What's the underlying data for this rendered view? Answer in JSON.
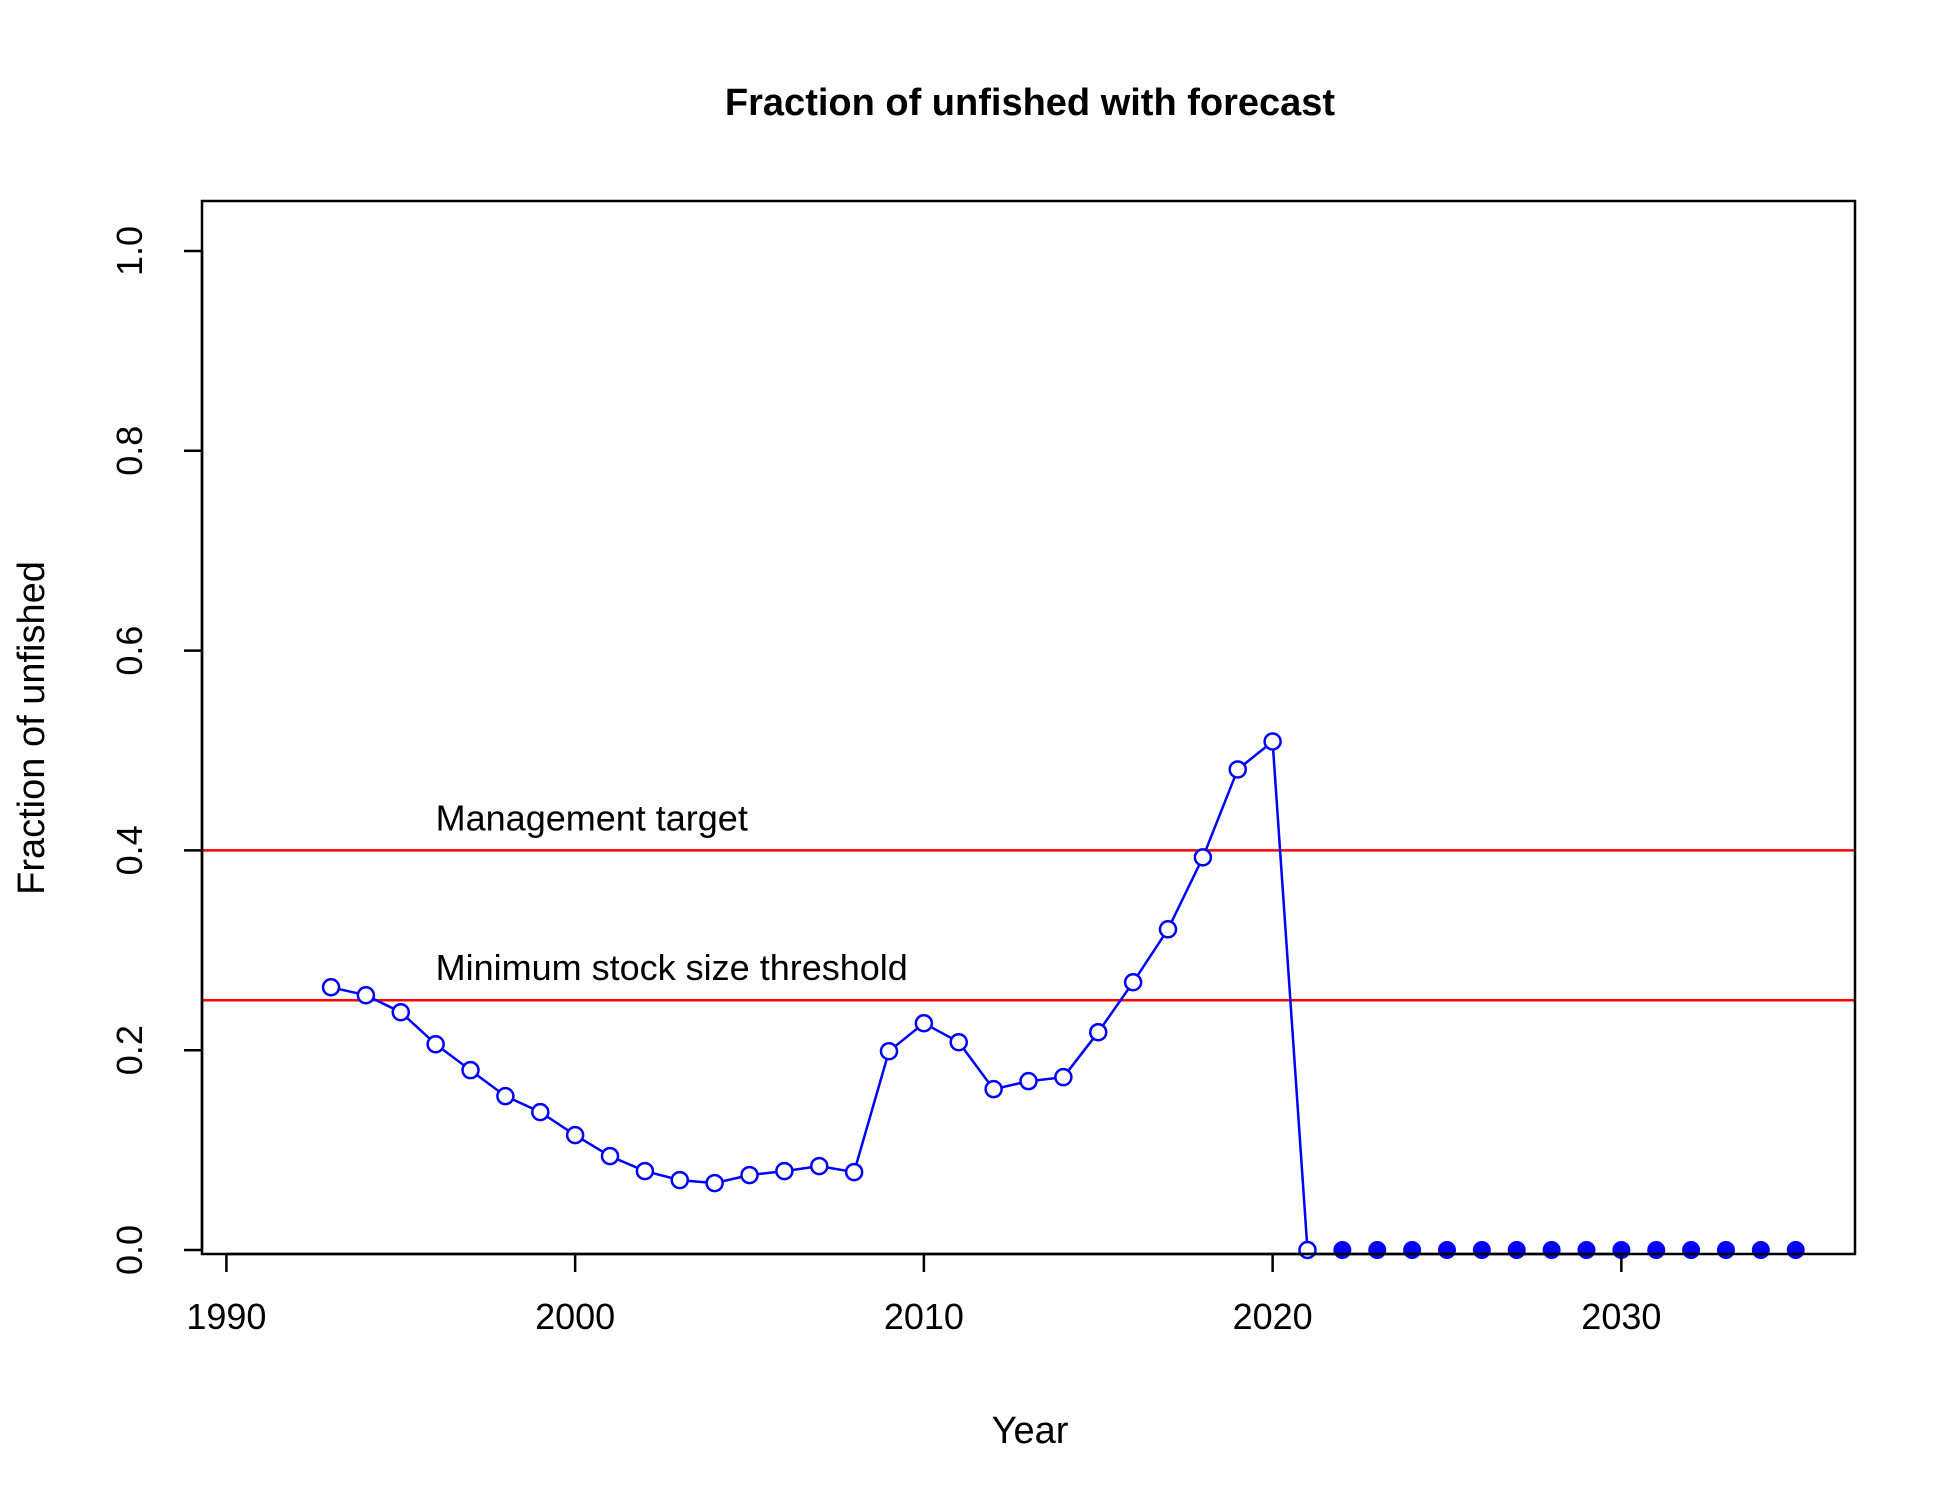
{
  "chart_data": {
    "type": "line",
    "title": "Fraction of unfished with forecast",
    "xlabel": "Year",
    "ylabel": "Fraction of unfished",
    "xlim": [
      1989.3,
      2036.7
    ],
    "ylim": [
      0,
      1.0
    ],
    "xticks": [
      {
        "value": 1990,
        "label": "1990"
      },
      {
        "value": 2000,
        "label": "2000"
      },
      {
        "value": 2010,
        "label": "2010"
      },
      {
        "value": 2020,
        "label": "2020"
      },
      {
        "value": 2030,
        "label": "2030"
      }
    ],
    "yticks": [
      {
        "value": 0.0,
        "label": "0.0"
      },
      {
        "value": 0.2,
        "label": "0.2"
      },
      {
        "value": 0.4,
        "label": "0.4"
      },
      {
        "value": 0.6,
        "label": "0.6"
      },
      {
        "value": 0.8,
        "label": "0.8"
      },
      {
        "value": 1.0,
        "label": "1.0"
      }
    ],
    "grid": false,
    "reference_lines": [
      {
        "y": 0.4,
        "label": "Management target",
        "label_x": 1996,
        "color": "#ff0000"
      },
      {
        "y": 0.25,
        "label": "Minimum stock size threshold",
        "label_x": 1996,
        "color": "#ff0000"
      }
    ],
    "series": [
      {
        "color": "#0000ff",
        "marker": "open-circle",
        "x": [
          1993,
          1994,
          1995,
          1996,
          1997,
          1998,
          1999,
          2000,
          2001,
          2002,
          2003,
          2004,
          2005,
          2006,
          2007,
          2008,
          2009,
          2010,
          2011,
          2012,
          2013,
          2014,
          2015,
          2016,
          2017,
          2018,
          2019,
          2020,
          2021
        ],
        "values": [
          0.263,
          0.255,
          0.238,
          0.206,
          0.18,
          0.154,
          0.138,
          0.115,
          0.094,
          0.079,
          0.07,
          0.067,
          0.075,
          0.079,
          0.084,
          0.078,
          0.199,
          0.227,
          0.208,
          0.161,
          0.169,
          0.173,
          0.218,
          0.268,
          0.321,
          0.393,
          0.481,
          0.509,
          0.0
        ]
      },
      {
        "color": "#0000ff",
        "marker": "filled-circle",
        "x": [
          2022,
          2023,
          2024,
          2025,
          2026,
          2027,
          2028,
          2029,
          2030,
          2031,
          2032,
          2033,
          2034,
          2035
        ],
        "values": [
          0,
          0,
          0,
          0,
          0,
          0,
          0,
          0,
          0,
          0,
          0,
          0,
          0,
          0
        ]
      }
    ]
  }
}
